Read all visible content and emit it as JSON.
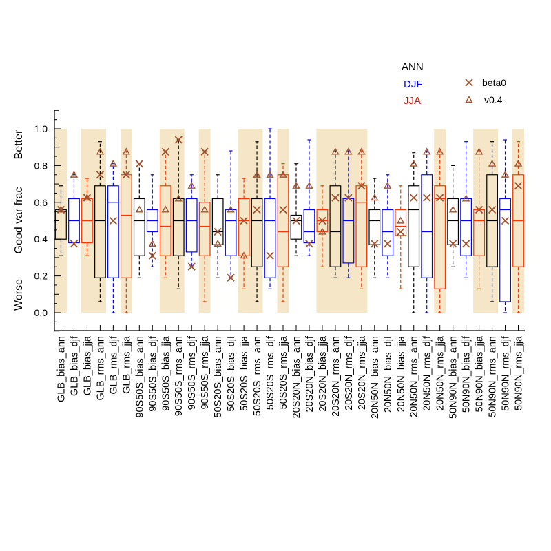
{
  "chart_data": {
    "type": "boxplot",
    "ylabel": "Good var frac",
    "ylabel_top": "Better",
    "ylabel_bottom": "Worse",
    "ylim": [
      -0.1,
      1.1
    ],
    "yticks": [
      0.0,
      0.2,
      0.4,
      0.6,
      0.8,
      1.0
    ],
    "ytick_labels": [
      "0.0",
      "0.2",
      "0.4",
      "0.6",
      "0.8",
      "1.0"
    ],
    "legend": {
      "placement": "top-right",
      "season_title": "ANN",
      "season_items": [
        {
          "label": "DJF",
          "color": "#0000ff"
        },
        {
          "label": "JJA",
          "color": "#ff0000"
        }
      ],
      "marker_items": [
        {
          "label": "beta0",
          "marker": "x",
          "color": "#a0522d"
        },
        {
          "label": "v0.4",
          "marker": "triangle",
          "color": "#a0522d"
        }
      ]
    },
    "season_colors": {
      "ann": "#000000",
      "djf": "#0000ff",
      "jja": "#ff3300"
    },
    "shade_color": "#f5e6c8",
    "shaded_groups": [
      {
        "from": 0,
        "to": 0
      },
      {
        "from": 2,
        "to": 3
      },
      {
        "from": 5,
        "to": 5
      },
      {
        "from": 8,
        "to": 9
      },
      {
        "from": 11,
        "to": 11
      },
      {
        "from": 14,
        "to": 15
      },
      {
        "from": 17,
        "to": 17
      },
      {
        "from": 20,
        "to": 23
      },
      {
        "from": 29,
        "to": 29
      },
      {
        "from": 32,
        "to": 33
      },
      {
        "from": 35,
        "to": 35
      }
    ],
    "categories": [
      "GLB_bias_ann",
      "GLB_bias_djf",
      "GLB_bias_jja",
      "GLB_rms_ann",
      "GLB_rms_djf",
      "GLB_rms_jja",
      "90S50S_bias_ann",
      "90S50S_bias_djf",
      "90S50S_bias_jja",
      "90S50S_rms_ann",
      "90S50S_rms_djf",
      "90S50S_rms_jja",
      "50S20S_bias_ann",
      "50S20S_bias_djf",
      "50S20S_bias_jja",
      "50S20S_rms_ann",
      "50S20S_rms_djf",
      "50S20S_rms_jja",
      "20S20N_bias_ann",
      "20S20N_bias_djf",
      "20S20N_bias_jja",
      "20S20N_rms_ann",
      "20S20N_rms_djf",
      "20S20N_rms_jja",
      "20N50N_bias_ann",
      "20N50N_bias_djf",
      "20N50N_bias_jja",
      "20N50N_rms_ann",
      "20N50N_rms_djf",
      "20N50N_rms_jja",
      "50N90N_bias_ann",
      "50N90N_bias_djf",
      "50N90N_bias_jja",
      "50N90N_rms_ann",
      "50N90N_rms_djf",
      "50N90N_rms_jja"
    ],
    "boxes": [
      {
        "min": 0.31,
        "q1": 0.4,
        "median": 0.55,
        "q3": 0.56,
        "max": 0.69,
        "beta0": 0.56,
        "v04": 0.56
      },
      {
        "min": 0.37,
        "q1": 0.38,
        "median": 0.5,
        "q3": 0.62,
        "max": 0.75,
        "beta0": 0.375,
        "v04": 0.75
      },
      {
        "min": 0.31,
        "q1": 0.38,
        "median": 0.5,
        "q3": 0.62,
        "max": 0.73,
        "beta0": 0.625,
        "v04": 0.625
      },
      {
        "min": 0.06,
        "q1": 0.19,
        "median": 0.5,
        "q3": 0.69,
        "max": 0.93,
        "beta0": 0.75,
        "v04": 0.875
      },
      {
        "min": 0.0,
        "q1": 0.19,
        "median": 0.6,
        "q3": 0.69,
        "max": 0.81,
        "beta0": 0.5,
        "v04": 0.81
      },
      {
        "min": 0.0,
        "q1": 0.19,
        "median": 0.53,
        "q3": 0.75,
        "max": 0.88,
        "beta0": 0.75,
        "v04": 0.875
      },
      {
        "min": 0.19,
        "q1": 0.31,
        "median": 0.5,
        "q3": 0.62,
        "max": 0.81,
        "beta0": 0.81,
        "v04": 0.56
      },
      {
        "min": 0.25,
        "q1": 0.44,
        "median": 0.5,
        "q3": 0.56,
        "max": 0.75,
        "beta0": 0.31,
        "v04": 0.375
      },
      {
        "min": 0.19,
        "q1": 0.31,
        "median": 0.47,
        "q3": 0.69,
        "max": 0.88,
        "beta0": 0.875,
        "v04": 0.56
      },
      {
        "min": 0.13,
        "q1": 0.31,
        "median": 0.5,
        "q3": 0.62,
        "max": 0.94,
        "beta0": 0.94,
        "v04": 0.62
      },
      {
        "min": 0.25,
        "q1": 0.33,
        "median": 0.5,
        "q3": 0.62,
        "max": 0.75,
        "beta0": 0.25,
        "v04": 0.69
      },
      {
        "min": 0.06,
        "q1": 0.31,
        "median": 0.47,
        "q3": 0.6,
        "max": 0.88,
        "beta0": 0.875,
        "v04": 0.56
      },
      {
        "min": 0.19,
        "q1": 0.37,
        "median": 0.44,
        "q3": 0.62,
        "max": 0.75,
        "beta0": 0.44,
        "v04": 0.375
      },
      {
        "min": 0.19,
        "q1": 0.31,
        "median": 0.5,
        "q3": 0.56,
        "max": 0.88,
        "beta0": 0.19,
        "v04": 0.56
      },
      {
        "min": 0.13,
        "q1": 0.31,
        "median": 0.5,
        "q3": 0.62,
        "max": 0.73,
        "beta0": 0.5,
        "v04": 0.31
      },
      {
        "min": 0.06,
        "q1": 0.25,
        "median": 0.5,
        "q3": 0.62,
        "max": 0.93,
        "beta0": 0.56,
        "v04": 0.75
      },
      {
        "min": 0.13,
        "q1": 0.19,
        "median": 0.5,
        "q3": 0.62,
        "max": 1.0,
        "beta0": 0.31,
        "v04": 0.75
      },
      {
        "min": 0.06,
        "q1": 0.25,
        "median": 0.44,
        "q3": 0.75,
        "max": 0.81,
        "beta0": 0.56,
        "v04": 0.75
      },
      {
        "min": 0.31,
        "q1": 0.4,
        "median": 0.5,
        "q3": 0.53,
        "max": 0.81,
        "beta0": 0.5,
        "v04": 0.69
      },
      {
        "min": 0.31,
        "q1": 0.38,
        "median": 0.44,
        "q3": 0.56,
        "max": 0.94,
        "beta0": 0.375,
        "v04": 0.69
      },
      {
        "min": 0.25,
        "q1": 0.44,
        "median": 0.5,
        "q3": 0.56,
        "max": 0.69,
        "beta0": 0.5,
        "v04": 0.44
      },
      {
        "min": 0.19,
        "q1": 0.25,
        "median": 0.44,
        "q3": 0.69,
        "max": 0.88,
        "beta0": 0.625,
        "v04": 0.875
      },
      {
        "min": 0.19,
        "q1": 0.27,
        "median": 0.5,
        "q3": 0.62,
        "max": 0.88,
        "beta0": 0.625,
        "v04": 0.875
      },
      {
        "min": 0.13,
        "q1": 0.25,
        "median": 0.6,
        "q3": 0.69,
        "max": 0.88,
        "beta0": 0.69,
        "v04": 0.875
      },
      {
        "min": 0.19,
        "q1": 0.37,
        "median": 0.5,
        "q3": 0.56,
        "max": 0.73,
        "beta0": 0.375,
        "v04": 0.625
      },
      {
        "min": 0.19,
        "q1": 0.31,
        "median": 0.44,
        "q3": 0.56,
        "max": 0.75,
        "beta0": 0.375,
        "v04": 0.69
      },
      {
        "min": 0.13,
        "q1": 0.42,
        "median": 0.47,
        "q3": 0.56,
        "max": 0.69,
        "beta0": 0.44,
        "v04": 0.5
      },
      {
        "min": 0.0,
        "q1": 0.25,
        "median": 0.56,
        "q3": 0.69,
        "max": 0.87,
        "beta0": 0.625,
        "v04": 0.81
      },
      {
        "min": 0.0,
        "q1": 0.19,
        "median": 0.44,
        "q3": 0.75,
        "max": 0.88,
        "beta0": 0.625,
        "v04": 0.875
      },
      {
        "min": 0.0,
        "q1": 0.13,
        "median": 0.62,
        "q3": 0.69,
        "max": 0.88,
        "beta0": 0.625,
        "v04": 0.875
      },
      {
        "min": 0.25,
        "q1": 0.37,
        "median": 0.5,
        "q3": 0.62,
        "max": 0.8,
        "beta0": 0.375,
        "v04": 0.56
      },
      {
        "min": 0.19,
        "q1": 0.31,
        "median": 0.5,
        "q3": 0.62,
        "max": 0.93,
        "beta0": 0.375,
        "v04": 0.62
      },
      {
        "min": 0.13,
        "q1": 0.31,
        "median": 0.5,
        "q3": 0.56,
        "max": 0.88,
        "beta0": 0.56,
        "v04": 0.875
      },
      {
        "min": 0.06,
        "q1": 0.25,
        "median": 0.5,
        "q3": 0.75,
        "max": 0.93,
        "beta0": 0.56,
        "v04": 0.81
      },
      {
        "min": 0.0,
        "q1": 0.06,
        "median": 0.56,
        "q3": 0.62,
        "max": 0.94,
        "beta0": 0.5,
        "v04": 0.75
      },
      {
        "min": 0.0,
        "q1": 0.25,
        "median": 0.5,
        "q3": 0.75,
        "max": 0.93,
        "beta0": 0.69,
        "v04": 0.81
      }
    ]
  }
}
